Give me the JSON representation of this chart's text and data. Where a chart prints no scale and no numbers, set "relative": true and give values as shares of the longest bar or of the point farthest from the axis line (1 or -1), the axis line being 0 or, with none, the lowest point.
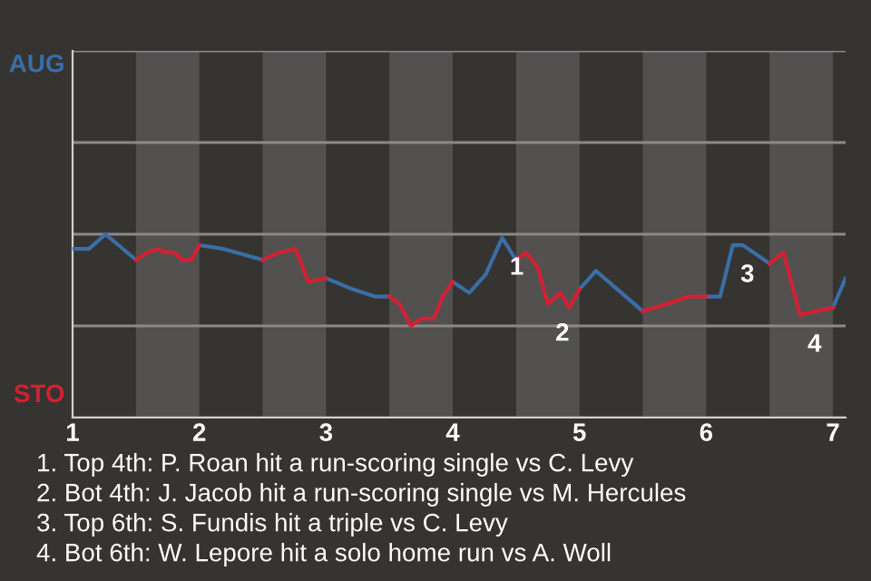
{
  "chart_data": {
    "type": "line",
    "relative": true,
    "xlim": [
      1,
      7.1
    ],
    "xticks": [
      1,
      2,
      3,
      4,
      5,
      6,
      7
    ],
    "grid": "y",
    "marker": "none",
    "line_style": "solid",
    "ref_lines": [
      {
        "axis": "y",
        "value": 0.5,
        "color": "#8a8a8a",
        "line_style": "solid"
      }
    ],
    "series": [
      {
        "color": "#3a6ea8",
        "x": [
          1.0,
          1.13,
          1.26,
          1.5,
          null,
          2.0,
          2.19,
          2.5,
          null,
          3.0,
          3.21,
          3.39,
          3.5,
          null,
          4.0,
          4.13,
          4.26,
          4.39,
          4.5,
          null,
          5.0,
          5.13,
          5.5,
          null,
          6.0,
          6.11,
          6.21,
          6.29,
          6.5,
          null,
          7.0,
          7.1
        ],
        "values": [
          0.92,
          0.92,
          1.0,
          0.86,
          null,
          0.94,
          0.92,
          0.86,
          null,
          0.76,
          0.7,
          0.66,
          0.66,
          null,
          0.74,
          0.68,
          0.78,
          0.98,
          0.86,
          null,
          0.7,
          0.8,
          0.58,
          null,
          0.66,
          0.66,
          0.94,
          0.94,
          0.84,
          null,
          0.6,
          0.76
        ]
      },
      {
        "color": "#d42033",
        "x": [
          1.5,
          1.59,
          1.67,
          1.74,
          1.8,
          1.87,
          1.94,
          2.0,
          null,
          2.5,
          2.63,
          2.76,
          2.86,
          3.0,
          null,
          3.5,
          3.58,
          3.67,
          3.75,
          3.85,
          3.92,
          4.0,
          null,
          4.5,
          4.58,
          4.67,
          4.75,
          4.85,
          4.92,
          5.0,
          null,
          5.5,
          5.69,
          5.86,
          6.0,
          null,
          6.5,
          6.61,
          6.74,
          6.86,
          7.0
        ],
        "values": [
          0.86,
          0.9,
          0.92,
          0.9,
          0.9,
          0.86,
          0.86,
          0.94,
          null,
          0.86,
          0.9,
          0.92,
          0.74,
          0.76,
          null,
          0.66,
          0.62,
          0.5,
          0.54,
          0.54,
          0.66,
          0.74,
          null,
          0.86,
          0.9,
          0.82,
          0.62,
          0.68,
          0.6,
          0.7,
          null,
          0.58,
          0.62,
          0.66,
          0.66,
          null,
          0.84,
          0.9,
          0.56,
          0.58,
          0.6
        ]
      }
    ],
    "bands": [
      {
        "axis": "x",
        "from": 1.5,
        "to": 2,
        "color": "#525150"
      },
      {
        "axis": "x",
        "from": 2.5,
        "to": 3,
        "color": "#525150"
      },
      {
        "axis": "x",
        "from": 3.5,
        "to": 4,
        "color": "#525150"
      },
      {
        "axis": "x",
        "from": 4.5,
        "to": 5,
        "color": "#525150"
      },
      {
        "axis": "x",
        "from": 5.5,
        "to": 6,
        "color": "#525150"
      },
      {
        "axis": "x",
        "from": 6.5,
        "to": 7,
        "color": "#525150"
      }
    ],
    "annotations": [
      "AUG",
      "STO",
      {
        "text": "1",
        "x": 4.39,
        "y": 0.98
      },
      {
        "text": "2",
        "x": 4.75,
        "y": 0.62
      },
      {
        "text": "3",
        "x": 6.21,
        "y": 0.94
      },
      {
        "text": "4",
        "x": 6.74,
        "y": 0.56
      },
      "1. Top 4th: P. Roan hit a run-scoring single vs C. Levy",
      "2. Bot 4th: J. Jacob hit a run-scoring single vs M. Hercules",
      "3. Top 6th: S. Fundis hit a triple vs C. Levy",
      "4. Bot 6th: W. Lepore hit a solo home run vs A. Woll"
    ]
  }
}
